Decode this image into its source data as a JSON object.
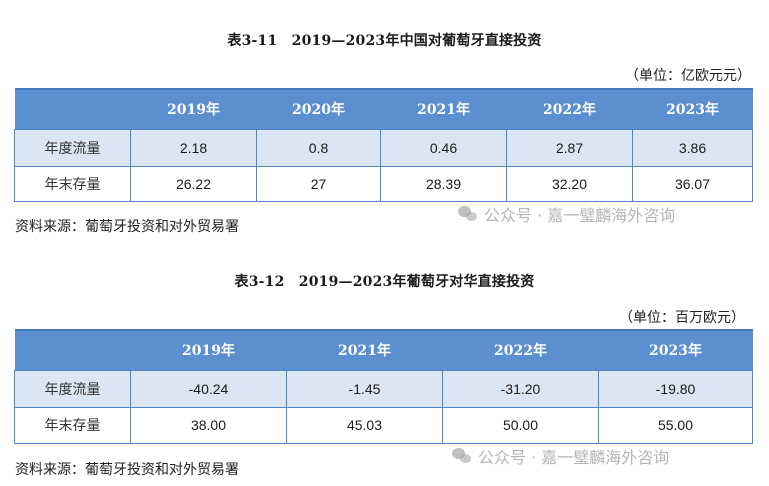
{
  "table1": {
    "title": "表3-11　2019—2023年中国对葡萄牙直接投资",
    "unit": "（单位：亿欧元元）",
    "headers": [
      "",
      "2019年",
      "2020年",
      "2021年",
      "2022年",
      "2023年"
    ],
    "rows": [
      {
        "label": "年度流量",
        "values": [
          "2.18",
          "0.8",
          "0.46",
          "2.87",
          "3.86"
        ]
      },
      {
        "label": "年末存量",
        "values": [
          "26.22",
          "27",
          "28.39",
          "32.20",
          "36.07"
        ]
      }
    ],
    "source": "资料来源：葡萄牙投资和对外贸易署",
    "watermark": "公众号 · 嘉一璧麟海外咨询"
  },
  "table2": {
    "title": "表3-12　2019—2023年葡萄牙对华直接投资",
    "unit": "（单位：百万欧元）",
    "headers": [
      "",
      "2019年",
      "2021年",
      "2022年",
      "2023年"
    ],
    "rows": [
      {
        "label": "年度流量",
        "values": [
          "-40.24",
          "-1.45",
          "-31.20",
          "-19.80"
        ]
      },
      {
        "label": "年末存量",
        "values": [
          "38.00",
          "45.03",
          "50.00",
          "55.00"
        ]
      }
    ],
    "source": "资料来源：葡萄牙投资和对外贸易署",
    "watermark": "公众号 · 嘉一璧麟海外咨询"
  }
}
